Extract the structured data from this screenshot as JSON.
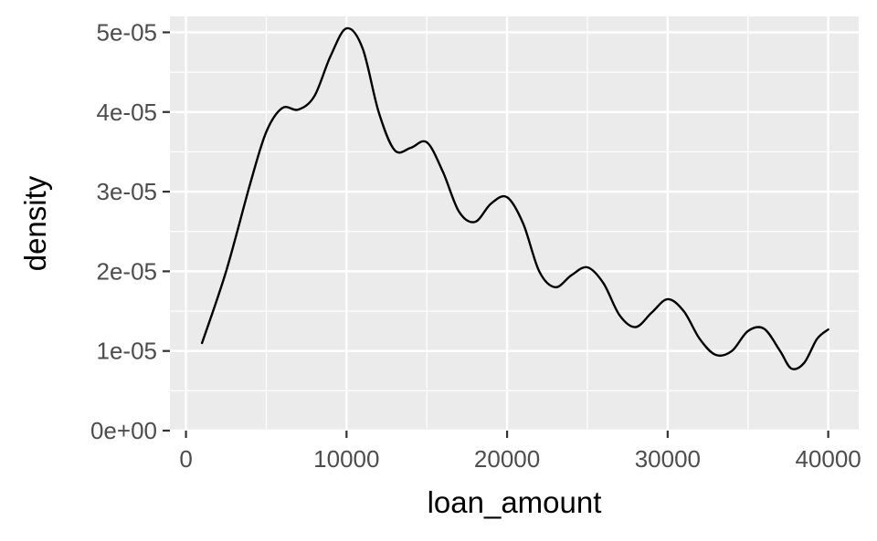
{
  "chart_data": {
    "type": "line",
    "title": "",
    "xlabel": "loan_amount",
    "ylabel": "density",
    "xlim": [
      -1000,
      41900
    ],
    "ylim": [
      0,
      5.2e-05
    ],
    "x_ticks": [
      0,
      10000,
      20000,
      30000,
      40000
    ],
    "x_tick_labels": [
      "0",
      "10000",
      "20000",
      "30000",
      "40000"
    ],
    "y_ticks": [
      0,
      1e-05,
      2e-05,
      3e-05,
      4e-05,
      5e-05
    ],
    "y_tick_labels": [
      "0e+00",
      "1e-05",
      "2e-05",
      "3e-05",
      "4e-05",
      "5e-05"
    ],
    "grid": true,
    "series": [
      {
        "color": "#000000",
        "x": [
          1000,
          2500,
          4000,
          5000,
          6000,
          7000,
          8000,
          9000,
          10000,
          11000,
          12000,
          13000,
          14000,
          15000,
          16000,
          17000,
          18000,
          19000,
          20000,
          21000,
          22000,
          23000,
          24000,
          25000,
          26000,
          27000,
          28000,
          29000,
          30000,
          31000,
          32000,
          33000,
          34000,
          35000,
          36000,
          37000,
          37700,
          38500,
          39300,
          40000
        ],
        "y": [
          1.1e-05,
          2e-05,
          3.1e-05,
          3.75e-05,
          4.05e-05,
          4.03e-05,
          4.2e-05,
          4.7e-05,
          5.05e-05,
          4.8e-05,
          4e-05,
          3.52e-05,
          3.55e-05,
          3.62e-05,
          3.25e-05,
          2.75e-05,
          2.62e-05,
          2.85e-05,
          2.93e-05,
          2.6e-05,
          2e-05,
          1.8e-05,
          1.95e-05,
          2.05e-05,
          1.85e-05,
          1.45e-05,
          1.3e-05,
          1.48e-05,
          1.65e-05,
          1.5e-05,
          1.15e-05,
          9.5e-06,
          1e-05,
          1.25e-05,
          1.28e-05,
          1e-05,
          7.8e-06,
          8.5e-06,
          1.15e-05,
          1.27e-05
        ]
      }
    ]
  }
}
